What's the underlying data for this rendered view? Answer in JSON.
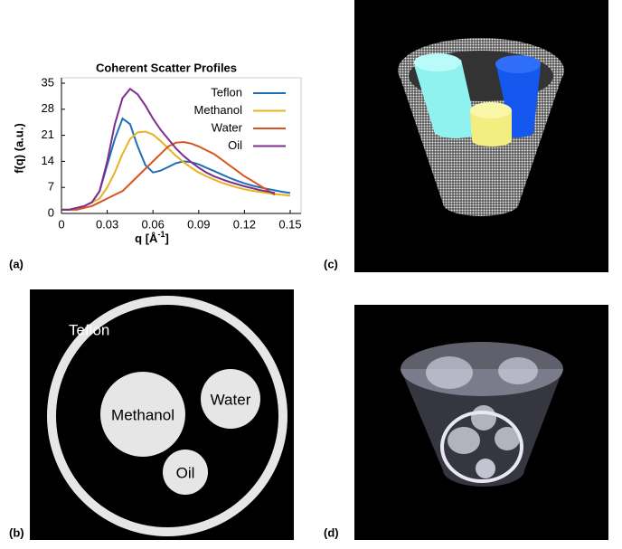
{
  "chart_data": {
    "type": "line",
    "title": "Coherent Scatter Profiles",
    "y_label": "f(q)   (a.u.)",
    "x_label": "q   [Å",
    "x_label_sup": "-1",
    "x_label_end": "]",
    "x": [
      0,
      0.005,
      0.01,
      0.015,
      0.02,
      0.025,
      0.03,
      0.035,
      0.04,
      0.045,
      0.05,
      0.055,
      0.06,
      0.065,
      0.07,
      0.075,
      0.08,
      0.085,
      0.09,
      0.095,
      0.1,
      0.105,
      0.11,
      0.115,
      0.12,
      0.125,
      0.13,
      0.135,
      0.14,
      0.145,
      0.15
    ],
    "series": [
      {
        "name": "Teflon",
        "color": "#1f6fb8",
        "values": [
          1,
          1,
          1.5,
          2,
          3,
          6,
          13,
          20,
          25.5,
          24,
          18,
          13,
          11,
          11.5,
          12.5,
          13.5,
          14,
          13.8,
          13.2,
          12.3,
          11.4,
          10.5,
          9.6,
          8.8,
          8.1,
          7.5,
          7,
          6.6,
          6.2,
          5.8,
          5.5
        ]
      },
      {
        "name": "Methanol",
        "color": "#e8b321",
        "values": [
          1,
          1,
          1.5,
          2,
          3,
          4,
          7,
          11,
          16,
          20,
          21.8,
          22,
          21.2,
          19.5,
          17.5,
          15.5,
          13.8,
          12.3,
          11,
          10,
          9.1,
          8.3,
          7.6,
          7,
          6.5,
          6.1,
          5.8,
          5.5,
          5.2,
          5,
          4.8
        ]
      },
      {
        "name": "Water",
        "color": "#d9541e",
        "values": [
          1,
          1,
          1,
          1.5,
          2,
          3,
          4,
          5,
          6,
          8,
          10,
          12,
          14,
          16,
          18,
          19,
          19.2,
          18.8,
          18,
          17,
          16,
          14.5,
          13,
          11.5,
          10,
          8.8,
          7.5,
          6.3,
          5,
          null,
          null
        ]
      },
      {
        "name": "Oil",
        "color": "#7e2f8e",
        "values": [
          1,
          1,
          1.5,
          2,
          3,
          6,
          14,
          24,
          31,
          33.5,
          32,
          29,
          25.5,
          22.5,
          20,
          17.5,
          15.5,
          13.8,
          12.3,
          11,
          10,
          9.2,
          8.5,
          7.9,
          7.3,
          6.8,
          6.3,
          5.9,
          5.5,
          null,
          null
        ]
      }
    ],
    "xlim": [
      0,
      0.15
    ],
    "xticks": [
      0,
      0.03,
      0.06,
      0.09,
      0.12,
      0.15
    ],
    "ylim": [
      0,
      35
    ],
    "yticks": [
      0,
      7,
      14,
      21,
      28,
      35
    ]
  },
  "panels": {
    "a": "(a)",
    "b": "(b)",
    "c": "(c)",
    "d": "(d)"
  },
  "phantom": {
    "teflon": "Teflon",
    "methanol": "Methanol",
    "water": "Water",
    "oil": "Oil"
  }
}
